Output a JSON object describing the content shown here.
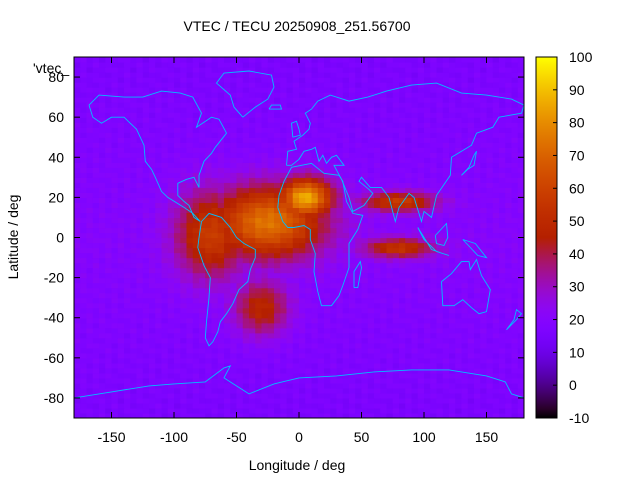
{
  "chart_data": {
    "type": "heatmap",
    "title": "VTEC / TECU 20250908_251.56700",
    "series_label": "'vtec_",
    "xlabel": "Longitude / deg",
    "ylabel": "Latitude / deg",
    "xlim": [
      -180,
      180
    ],
    "ylim": [
      -90,
      90
    ],
    "x_ticks": [
      -150,
      -100,
      -50,
      0,
      50,
      100,
      150
    ],
    "y_ticks": [
      80,
      60,
      40,
      20,
      0,
      -20,
      -40,
      -60,
      -80
    ],
    "x_tick_labels": [
      "-150",
      "-100",
      "-50",
      "0",
      "50",
      "100",
      "150"
    ],
    "y_tick_labels": [
      "80",
      "60",
      "40",
      "20",
      "0",
      "-20",
      "-40",
      "-60",
      "-80"
    ],
    "colorbar": {
      "min": -10,
      "max": 100,
      "ticks": [
        100,
        90,
        80,
        70,
        60,
        50,
        40,
        30,
        20,
        10,
        0,
        -10
      ],
      "tick_labels": [
        "100",
        "90",
        "80",
        "70",
        "60",
        "50",
        "40",
        "30",
        "20",
        "10",
        "0",
        "-10"
      ]
    },
    "background_tec": 20,
    "features": [
      {
        "name": "equatorial-anomaly-africa",
        "lon": 5,
        "lat": 20,
        "peak": 88
      },
      {
        "name": "anomaly-atlantic",
        "lon": -25,
        "lat": 8,
        "peak": 75
      },
      {
        "name": "anomaly-americas",
        "lon": -70,
        "lat": 2,
        "peak": 58
      },
      {
        "name": "anomaly-south-atlantic",
        "lon": -30,
        "lat": -35,
        "peak": 50
      },
      {
        "name": "anomaly-indian-ocean",
        "lon": 80,
        "lat": 18,
        "peak": 58
      },
      {
        "name": "anomaly-south-indian",
        "lon": 80,
        "lat": -5,
        "peak": 55
      }
    ],
    "coastline_color": "#00bfff"
  }
}
